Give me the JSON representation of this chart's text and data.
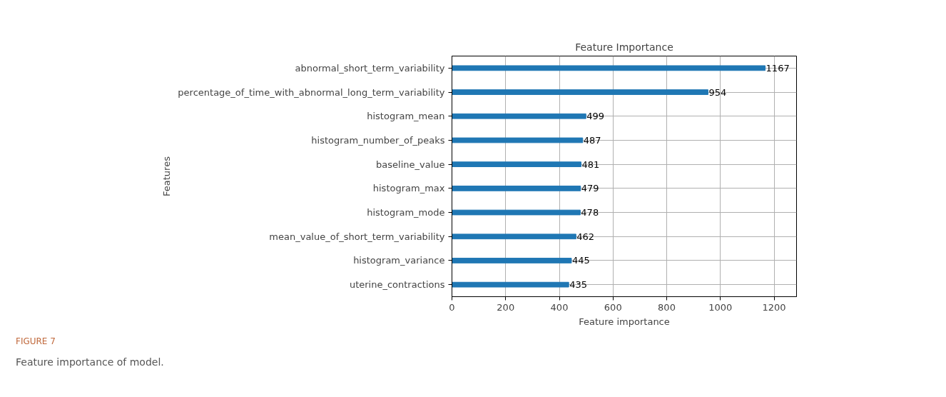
{
  "chart_data": {
    "type": "bar",
    "orientation": "horizontal",
    "title": "Feature Importance",
    "xlabel": "Feature importance",
    "ylabel": "Features",
    "categories": [
      "abnormal_short_term_variability",
      "percentage_of_time_with_abnormal_long_term_variability",
      "histogram_mean",
      "histogram_number_of_peaks",
      "baseline_value",
      "histogram_max",
      "histogram_mode",
      "mean_value_of_short_term_variability",
      "histogram_variance",
      "uterine_contractions"
    ],
    "values": [
      1167,
      954,
      499,
      487,
      481,
      479,
      478,
      462,
      445,
      435
    ],
    "color": "#1f77b4",
    "data_labels": true,
    "grid": true,
    "xlim": [
      0,
      1283.7
    ],
    "xticks": [
      0,
      200,
      400,
      600,
      800,
      1000,
      1200
    ],
    "annotations": [
      "FIGURE 7",
      "Feature importance of model."
    ]
  }
}
